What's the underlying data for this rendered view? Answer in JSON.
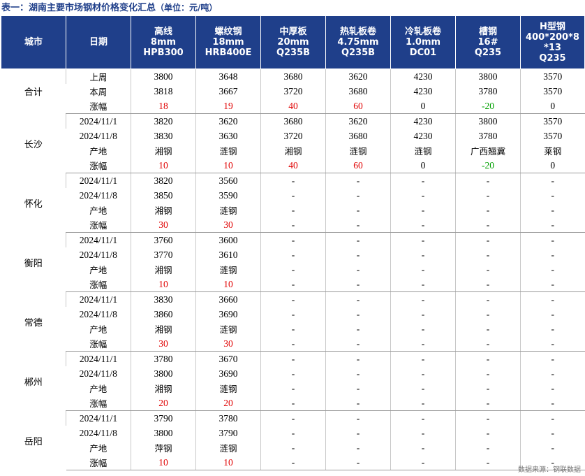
{
  "title": "表一：湖南主要市场钢材价格变化汇总",
  "unit": "（单位：元/吨）",
  "headers": [
    [
      "城市"
    ],
    [
      "日期"
    ],
    [
      "高线",
      "8mm",
      "HPB300"
    ],
    [
      "螺纹钢",
      "18mm",
      "HRB400E"
    ],
    [
      "中厚板",
      "20mm",
      "Q235B"
    ],
    [
      "热轧板卷",
      "4.75mm",
      "Q235B"
    ],
    [
      "冷轧板卷",
      "1.0mm",
      "DC01"
    ],
    [
      "槽钢",
      "16#",
      "Q235"
    ],
    [
      "H型钢",
      "400*200*8",
      "*13",
      "Q235"
    ]
  ],
  "groups": [
    {
      "city": "合计",
      "rows": [
        {
          "label": "上周",
          "type": "num",
          "values": [
            "3800",
            "3648",
            "3680",
            "3620",
            "4230",
            "3800",
            "3570"
          ]
        },
        {
          "label": "本周",
          "type": "num",
          "values": [
            "3818",
            "3667",
            "3720",
            "3680",
            "4230",
            "3780",
            "3570"
          ]
        },
        {
          "label": "涨幅",
          "type": "chg",
          "values": [
            "18",
            "19",
            "40",
            "60",
            "0",
            "-20",
            "0"
          ]
        }
      ]
    },
    {
      "city": "长沙",
      "rows": [
        {
          "label": "2024/11/1",
          "type": "num",
          "values": [
            "3820",
            "3620",
            "3680",
            "3620",
            "4230",
            "3800",
            "3570"
          ]
        },
        {
          "label": "2024/11/8",
          "type": "num",
          "values": [
            "3830",
            "3630",
            "3720",
            "3680",
            "4230",
            "3780",
            "3570"
          ]
        },
        {
          "label": "产地",
          "type": "origin",
          "values": [
            "湘钢",
            "涟钢",
            "湘钢",
            "涟钢",
            "涟钢",
            "广西翘冀",
            "莱钢"
          ]
        },
        {
          "label": "涨幅",
          "type": "chg",
          "values": [
            "10",
            "10",
            "40",
            "60",
            "0",
            "-20",
            "0"
          ]
        }
      ]
    },
    {
      "city": "怀化",
      "rows": [
        {
          "label": "2024/11/1",
          "type": "num",
          "values": [
            "3820",
            "3560",
            "-",
            "-",
            "-",
            "-",
            "-"
          ]
        },
        {
          "label": "2024/11/8",
          "type": "num",
          "values": [
            "3850",
            "3590",
            "-",
            "-",
            "-",
            "-",
            "-"
          ]
        },
        {
          "label": "产地",
          "type": "origin",
          "values": [
            "湘钢",
            "涟钢",
            "-",
            "-",
            "-",
            "-",
            "-"
          ]
        },
        {
          "label": "涨幅",
          "type": "chg",
          "values": [
            "30",
            "30",
            "-",
            "-",
            "-",
            "-",
            "-"
          ]
        }
      ]
    },
    {
      "city": "衡阳",
      "rows": [
        {
          "label": "2024/11/1",
          "type": "num",
          "values": [
            "3760",
            "3600",
            "-",
            "-",
            "-",
            "-",
            "-"
          ]
        },
        {
          "label": "2024/11/8",
          "type": "num",
          "values": [
            "3770",
            "3610",
            "-",
            "-",
            "-",
            "-",
            "-"
          ]
        },
        {
          "label": "产地",
          "type": "origin",
          "values": [
            "湘钢",
            "涟钢",
            "-",
            "-",
            "-",
            "-",
            "-"
          ]
        },
        {
          "label": "涨幅",
          "type": "chg",
          "values": [
            "10",
            "10",
            "-",
            "-",
            "-",
            "-",
            "-"
          ]
        }
      ]
    },
    {
      "city": "常德",
      "rows": [
        {
          "label": "2024/11/1",
          "type": "num",
          "values": [
            "3830",
            "3660",
            "-",
            "-",
            "-",
            "-",
            "-"
          ]
        },
        {
          "label": "2024/11/8",
          "type": "num",
          "values": [
            "3860",
            "3690",
            "-",
            "-",
            "-",
            "-",
            "-"
          ]
        },
        {
          "label": "产地",
          "type": "origin",
          "values": [
            "湘钢",
            "涟钢",
            "-",
            "-",
            "-",
            "-",
            "-"
          ]
        },
        {
          "label": "涨幅",
          "type": "chg",
          "values": [
            "30",
            "30",
            "-",
            "-",
            "-",
            "-",
            "-"
          ]
        }
      ]
    },
    {
      "city": "郴州",
      "rows": [
        {
          "label": "2024/11/1",
          "type": "num",
          "values": [
            "3780",
            "3670",
            "-",
            "-",
            "-",
            "-",
            "-"
          ]
        },
        {
          "label": "2024/11/8",
          "type": "num",
          "values": [
            "3800",
            "3690",
            "-",
            "-",
            "-",
            "-",
            "-"
          ]
        },
        {
          "label": "产地",
          "type": "origin",
          "values": [
            "湘钢",
            "涟钢",
            "-",
            "-",
            "-",
            "-",
            "-"
          ]
        },
        {
          "label": "涨幅",
          "type": "chg",
          "values": [
            "20",
            "20",
            "-",
            "-",
            "-",
            "-",
            "-"
          ]
        }
      ]
    },
    {
      "city": "岳阳",
      "rows": [
        {
          "label": "2024/11/1",
          "type": "num",
          "values": [
            "3790",
            "3780",
            "-",
            "-",
            "-",
            "-",
            "-"
          ]
        },
        {
          "label": "2024/11/8",
          "type": "num",
          "values": [
            "3800",
            "3790",
            "-",
            "-",
            "-",
            "-",
            "-"
          ]
        },
        {
          "label": "产地",
          "type": "origin",
          "values": [
            "萍钢",
            "涟钢",
            "-",
            "-",
            "-",
            "-",
            "-"
          ]
        },
        {
          "label": "涨幅",
          "type": "chg",
          "values": [
            "10",
            "10",
            "-",
            "-",
            "-",
            "-",
            "-"
          ]
        }
      ]
    }
  ],
  "source": "数据来源：钢联数据",
  "colors": {
    "header_bg": "#1f3f8a",
    "up": "#e00000",
    "down": "#00a000"
  }
}
